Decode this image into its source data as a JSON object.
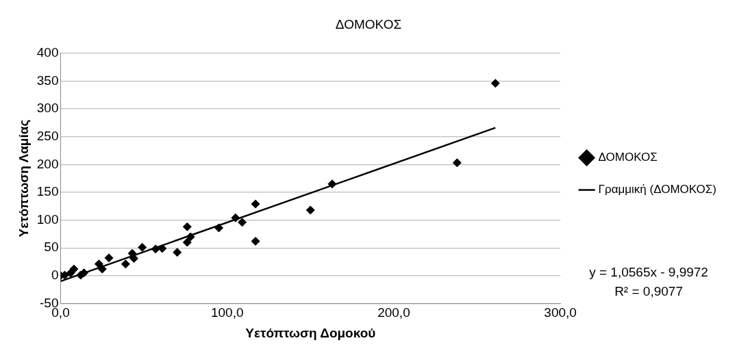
{
  "chart_data": {
    "type": "scatter",
    "title": "ΔΟΜΟΚΟΣ",
    "xlabel": "Υετόπτωση Δομοκού",
    "ylabel": "Υετόπτωση Λαμίας",
    "xlim": [
      0,
      300
    ],
    "xticks": [
      {
        "value": 0,
        "label": "0,0"
      },
      {
        "value": 100,
        "label": "100,0"
      },
      {
        "value": 200,
        "label": "200,0"
      },
      {
        "value": 300,
        "label": "300,0"
      }
    ],
    "ylim": [
      -50,
      400
    ],
    "yticks": [
      -50,
      0,
      50,
      100,
      150,
      200,
      250,
      300,
      350,
      400
    ],
    "grid": "y",
    "legend": "right",
    "marker": "diamond",
    "series": [
      {
        "name": "ΔΟΜΟΚΟΣ",
        "color": "#000000",
        "x": [
          0,
          2.5,
          6,
          8,
          12,
          14,
          23,
          25,
          29,
          39,
          43,
          44,
          49,
          57,
          61,
          70,
          76,
          76,
          78,
          95,
          105,
          109,
          117,
          117,
          150,
          163,
          238,
          261
        ],
        "values": [
          0,
          1,
          5,
          12,
          1,
          5,
          21,
          12,
          32,
          21,
          40,
          31,
          51,
          48,
          49,
          42,
          88,
          60,
          70,
          86,
          104,
          96,
          129,
          62,
          118,
          165,
          203,
          346
        ]
      },
      {
        "name": "Γραμμική (ΔΟΜΟΚΟΣ)",
        "type": "line",
        "marker": "none",
        "color": "#000000",
        "x": [
          0,
          261
        ],
        "values": [
          -10,
          266
        ]
      }
    ],
    "annotations": [
      "y = 1,0565x - 9,9972",
      "R² = 0,9077"
    ]
  }
}
